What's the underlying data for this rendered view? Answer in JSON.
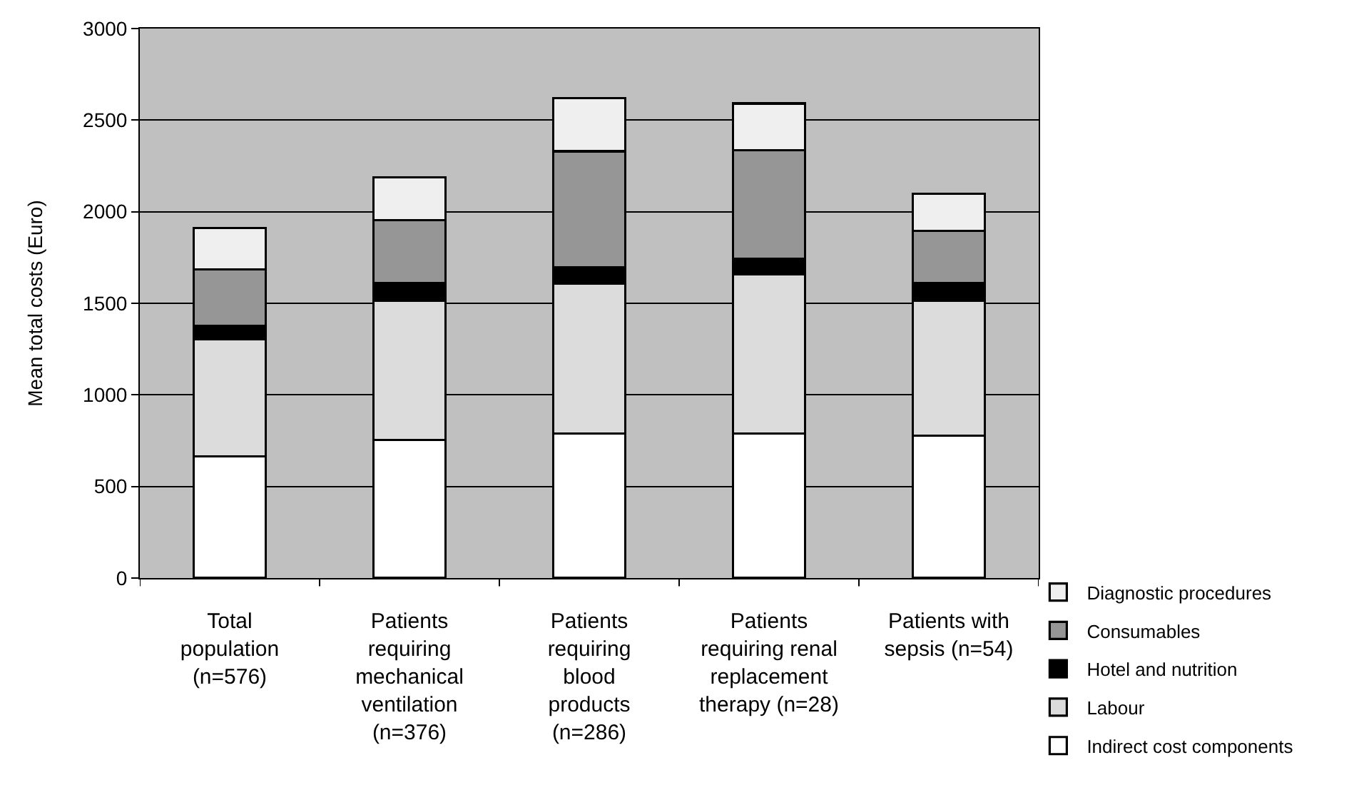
{
  "chart_data": {
    "type": "bar",
    "stacked": true,
    "ylabel": "Mean total costs (Euro)",
    "categories": [
      "Total\npopulation\n(n=576)",
      "Patients\nrequiring\nmechanical\nventilation\n(n=376)",
      "Patients\nrequiring\nblood\nproducts\n(n=286)",
      "Patients\nrequiring renal\nreplacement\ntherapy (n=28)",
      "Patients with\nsepsis (n=54)"
    ],
    "series": [
      {
        "name": "Indirect cost components",
        "color": "#ffffff",
        "values": [
          664,
          753,
          788,
          788,
          778
        ]
      },
      {
        "name": "Labour",
        "color": "#dcdcdc",
        "values": [
          639,
          762,
          818,
          869,
          737
        ]
      },
      {
        "name": "Hotel and nutrition",
        "color": "#000000",
        "values": [
          73,
          95,
          89,
          87,
          95
        ]
      },
      {
        "name": "Consumables",
        "color": "#969696",
        "values": [
          309,
          343,
          635,
          592,
          285
        ]
      },
      {
        "name": "Diagnostic procedures",
        "color": "#efefef",
        "values": [
          225,
          234,
          289,
          255,
          204
        ]
      }
    ],
    "ylim": [
      0,
      3000
    ],
    "yticks": [
      0,
      500,
      1000,
      1500,
      2000,
      2500,
      3000
    ],
    "grid": "y",
    "legend": "bottom right"
  }
}
